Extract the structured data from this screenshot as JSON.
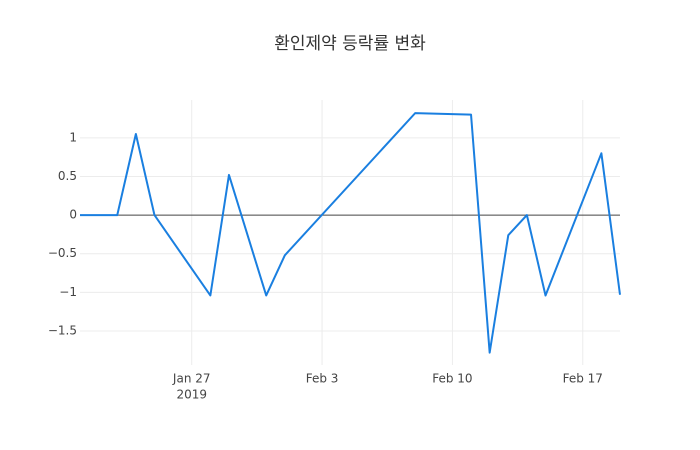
{
  "chart_data": {
    "type": "line",
    "title": "환인제약 등락률 변화",
    "x": [
      "2019-01-21",
      "2019-01-23",
      "2019-01-24",
      "2019-01-25",
      "2019-01-28",
      "2019-01-29",
      "2019-01-31",
      "2019-02-01",
      "2019-02-08",
      "2019-02-11",
      "2019-02-12",
      "2019-02-13",
      "2019-02-14",
      "2019-02-15",
      "2019-02-18",
      "2019-02-19"
    ],
    "series": [
      {
        "color": "#1a7fe0",
        "values": [
          0,
          0,
          1.05,
          0,
          -1.04,
          0.52,
          -1.04,
          -0.52,
          1.32,
          1.3,
          -1.78,
          -0.26,
          0,
          -1.04,
          0.8,
          -1.03
        ]
      }
    ],
    "xlim": [
      "2019-01-21",
      "2019-02-19"
    ],
    "xticks": [
      {
        "value": "2019-01-27",
        "label": "Jan 27",
        "sublabel": "2019"
      },
      {
        "value": "2019-02-03",
        "label": "Feb 3"
      },
      {
        "value": "2019-02-10",
        "label": "Feb 10"
      },
      {
        "value": "2019-02-17",
        "label": "Feb 17"
      }
    ],
    "ylim": [
      -1.94,
      1.49
    ],
    "yticks": [
      {
        "value": -1.5,
        "label": "−1.5"
      },
      {
        "value": -1,
        "label": "−1"
      },
      {
        "value": -0.5,
        "label": "−0.5"
      },
      0,
      0.5,
      1
    ],
    "grid": true
  }
}
